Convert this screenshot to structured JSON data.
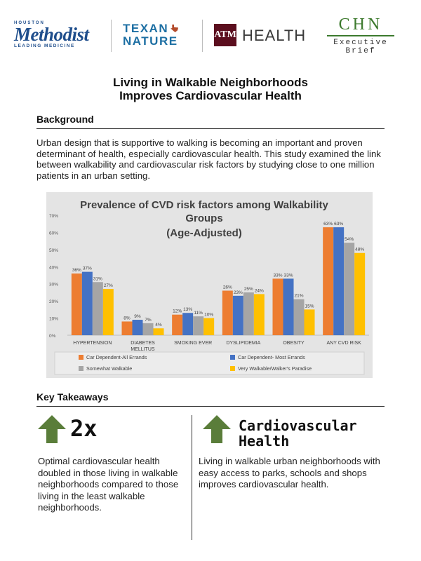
{
  "logos": {
    "methodist_top": "HOUSTON",
    "methodist_name": "Methodist",
    "methodist_tag": "LEADING MEDICINE",
    "texan_line1": "TEXAN",
    "texan_line2": "NATURE",
    "tamu_mark": "ATM",
    "tamu_word": "HEALTH",
    "chn_title": "CHN",
    "chn_sub1": "Executive",
    "chn_sub2": "Brief"
  },
  "title": {
    "line1": "Living in Walkable Neighborhoods",
    "line2": "Improves Cardiovascular Health"
  },
  "background": {
    "heading": "Background",
    "text": "Urban design that is supportive to walking is becoming an important and proven determinant of health, especially cardiovascular health. This study examined the link between walkability and cardiovascular risk factors by studying close to one million patients in an urban setting."
  },
  "chart_data": {
    "type": "bar",
    "title": "Prevalence of CVD risk factors among Walkability Groups",
    "subtitle": "(Age-Adjusted)",
    "title_lines": [
      "Prevalence of CVD risk factors among Walkability",
      "Groups"
    ],
    "categories": [
      "HYPERTENSION",
      "DIABETES MELLITUS",
      "SMOKING EVER",
      "DYSLIPIDEMIA",
      "OBESITY",
      "ANY CVD RISK"
    ],
    "category_lines": [
      [
        "HYPERTENSION"
      ],
      [
        "DIABETES",
        "MELLITUS"
      ],
      [
        "SMOKING EVER"
      ],
      [
        "DYSLIPIDEMIA"
      ],
      [
        "OBESITY"
      ],
      [
        "ANY CVD RISK"
      ]
    ],
    "series": [
      {
        "name": "Car Dependent-All Errands",
        "color": "#ed7d31",
        "values": [
          36,
          8,
          12,
          26,
          33,
          63
        ]
      },
      {
        "name": "Car Dependent- Most Errands",
        "color": "#4472c4",
        "values": [
          37,
          9,
          13,
          23,
          33,
          63
        ]
      },
      {
        "name": "Somewhat Walkable",
        "color": "#a5a5a5",
        "values": [
          31,
          7,
          11,
          25,
          21,
          54
        ]
      },
      {
        "name": "Very Walkable/Walker's Paradise",
        "color": "#ffc000",
        "values": [
          27,
          4,
          10,
          24,
          15,
          48
        ]
      }
    ],
    "ylim": [
      0,
      70
    ],
    "yticks": [
      "0%",
      "10%",
      "20%",
      "30%",
      "40%",
      "50%",
      "60%",
      "70%"
    ],
    "legend_position": "bottom",
    "grid": false
  },
  "takeaways": {
    "heading": "Key Takeaways",
    "left_big": "2x",
    "left_text": "Optimal cardiovascular health doubled in those living in walkable neighborhoods compared to those living in the least walkable neighborhoods.",
    "right_big_line1": "Cardiovascular",
    "right_big_line2": "Health",
    "right_text": "Living in walkable urban neighborhoods with easy access to parks, schools and shops improves cardiovascular health."
  },
  "colors": {
    "arrow_green": "#5a7d3a",
    "methodist_blue": "#1f4e8c",
    "texan_blue": "#1d6fa3",
    "tamu_maroon": "#5b0e1e",
    "chn_green": "#3d7a2e"
  }
}
